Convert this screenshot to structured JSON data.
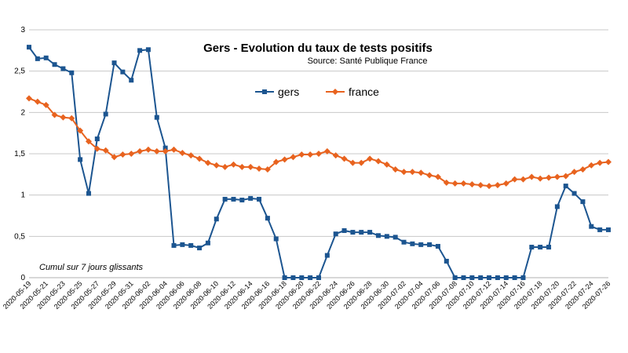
{
  "chart_data": {
    "type": "line",
    "title": "Gers - Evolution du taux de tests positifs",
    "subtitle": "Source: Santé Publique France",
    "annotation": "Cumul sur 7 jours glissants",
    "categories": [
      "2020-05-19",
      null,
      "2020-05-21",
      null,
      "2020-05-23",
      null,
      "2020-05-25",
      null,
      "2020-05-27",
      null,
      "2020-05-29",
      null,
      "2020-05-31",
      null,
      "2020-06-02",
      null,
      "2020-06-04",
      null,
      "2020-06-06",
      null,
      "2020-06-08",
      null,
      "2020-06-10",
      null,
      "2020-06-12",
      null,
      "2020-06-14",
      null,
      "2020-06-16",
      null,
      "2020-06-18",
      null,
      "2020-06-20",
      null,
      "2020-06-22",
      null,
      "2020-06-24",
      null,
      "2020-06-26",
      null,
      "2020-06-28",
      null,
      "2020-06-30",
      null,
      "2020-07-02",
      null,
      "2020-07-04",
      null,
      "2020-07-06",
      null,
      "2020-07-08",
      null,
      "2020-07-10",
      null,
      "2020-07-12",
      null,
      "2020-07-14",
      null,
      "2020-07-16",
      null,
      "2020-07-18",
      null,
      "2020-07-20",
      null,
      "2020-07-22",
      null,
      "2020-07-24",
      null,
      "2020-07-26"
    ],
    "series": [
      {
        "name": "gers",
        "color": "#1c5590",
        "marker": "square",
        "values": [
          2.79,
          2.65,
          2.66,
          2.58,
          2.53,
          2.48,
          1.43,
          1.02,
          1.68,
          1.98,
          2.6,
          2.49,
          2.39,
          2.75,
          2.76,
          1.94,
          1.57,
          0.39,
          0.4,
          0.39,
          0.36,
          0.42,
          0.71,
          0.95,
          0.95,
          0.94,
          0.96,
          0.95,
          0.72,
          0.47,
          0,
          0,
          0,
          0,
          0,
          0.27,
          0.53,
          0.57,
          0.55,
          0.55,
          0.55,
          0.51,
          0.5,
          0.49,
          0.43,
          0.41,
          0.4,
          0.4,
          0.38,
          0.2,
          0,
          0,
          0,
          0,
          0,
          0,
          0,
          0,
          0,
          0.37,
          0.37,
          0.37,
          0.86,
          1.11,
          1.02,
          0.92,
          0.62,
          0.58,
          0.58
        ]
      },
      {
        "name": "france",
        "color": "#e8631f",
        "marker": "diamond",
        "values": [
          2.17,
          2.13,
          2.09,
          1.97,
          1.94,
          1.93,
          1.78,
          1.65,
          1.56,
          1.54,
          1.46,
          1.49,
          1.5,
          1.53,
          1.55,
          1.53,
          1.53,
          1.55,
          1.51,
          1.48,
          1.44,
          1.39,
          1.36,
          1.34,
          1.37,
          1.34,
          1.34,
          1.32,
          1.31,
          1.4,
          1.43,
          1.46,
          1.49,
          1.49,
          1.5,
          1.53,
          1.48,
          1.44,
          1.39,
          1.39,
          1.44,
          1.41,
          1.37,
          1.31,
          1.28,
          1.28,
          1.27,
          1.24,
          1.22,
          1.15,
          1.14,
          1.14,
          1.13,
          1.12,
          1.11,
          1.12,
          1.14,
          1.19,
          1.19,
          1.22,
          1.2,
          1.21,
          1.22,
          1.23,
          1.28,
          1.31,
          1.36,
          1.39,
          1.4
        ]
      }
    ],
    "ylim": [
      0,
      3
    ],
    "yticks": [
      0,
      {
        "value": 0.5,
        "label": "0,5"
      },
      1,
      {
        "value": 1.5,
        "label": "1,5"
      },
      2,
      {
        "value": 2.5,
        "label": "2,5"
      },
      3
    ],
    "grid": true
  }
}
